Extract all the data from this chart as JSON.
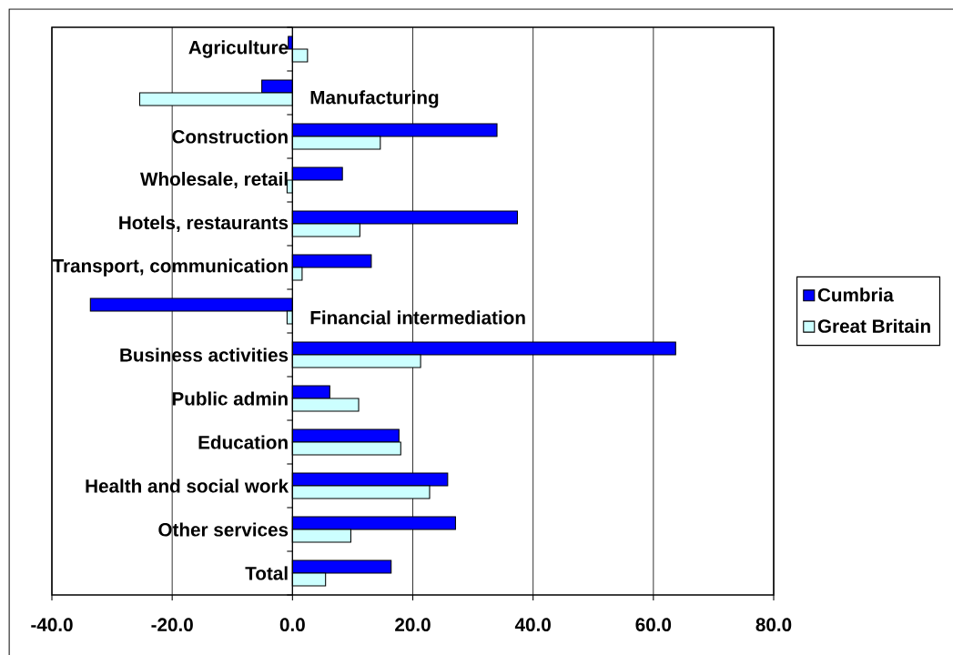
{
  "chart_data": {
    "type": "bar",
    "orientation": "horizontal",
    "categories": [
      "Agriculture",
      "Manufacturing",
      "Construction",
      "Wholesale, retail",
      "Hotels, restaurants",
      "Transport, communication",
      "Financial intermediation",
      "Business activities",
      "Public admin",
      "Education",
      "Health and social work",
      "Other services",
      "Total"
    ],
    "series": [
      {
        "name": "Cumbria",
        "color": "#0000ff",
        "values": [
          -0.7,
          -5.1,
          34.0,
          8.3,
          37.4,
          13.1,
          -33.6,
          63.7,
          6.2,
          17.7,
          25.8,
          27.1,
          16.4
        ]
      },
      {
        "name": "Great Britain",
        "color": "#ccffff",
        "values": [
          2.5,
          -25.4,
          14.6,
          -0.9,
          11.2,
          1.6,
          -0.9,
          21.3,
          11.0,
          18.0,
          22.8,
          9.7,
          5.5
        ]
      }
    ],
    "xlim": [
      -40,
      80
    ],
    "xticks": [
      {
        "value": -40,
        "label": "-40.0"
      },
      {
        "value": -20,
        "label": "-20.0"
      },
      {
        "value": 0,
        "label": "0.0"
      },
      {
        "value": 20,
        "label": "20.0"
      },
      {
        "value": 40,
        "label": "40.0"
      },
      {
        "value": 60,
        "label": "60.0"
      },
      {
        "value": 80,
        "label": "80.0"
      }
    ],
    "grid": "x",
    "legend": "right"
  }
}
